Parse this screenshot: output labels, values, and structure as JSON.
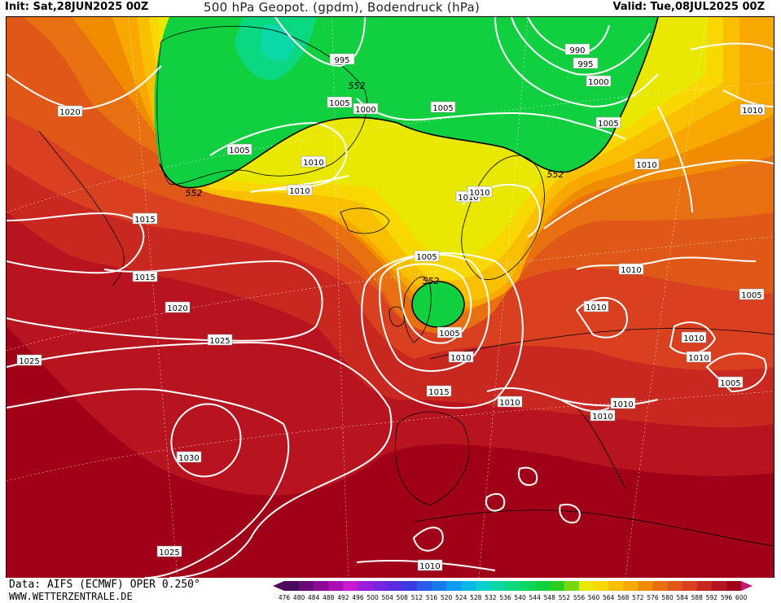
{
  "header": {
    "init": "Init: Sat,28JUN2025 00Z",
    "title": "500 hPa Geopot. (gpdm), Bodendruck (hPa)",
    "valid": "Valid: Tue,08JUL2025 00Z"
  },
  "footer": {
    "source": "Data: AIFS (ECMWF) OPER 0.250°",
    "website": "WWW.WETTERZENTRALE.DE"
  },
  "legend": {
    "ticks": [
      "476",
      "480",
      "484",
      "488",
      "492",
      "496",
      "500",
      "504",
      "508",
      "512",
      "516",
      "520",
      "524",
      "528",
      "532",
      "536",
      "540",
      "544",
      "548",
      "552",
      "556",
      "560",
      "564",
      "568",
      "572",
      "576",
      "580",
      "584",
      "588",
      "592",
      "596",
      "600"
    ],
    "colors": [
      "#4b0a5e",
      "#6a0a7a",
      "#8a0a96",
      "#aa10b4",
      "#c81ad0",
      "#9a1ed8",
      "#7a24dc",
      "#5a2ae0",
      "#3a3ae4",
      "#2a5ae8",
      "#1a7aec",
      "#109af0",
      "#0ab8e8",
      "#0ad0d0",
      "#0ad8a8",
      "#0ad880",
      "#0ad860",
      "#10d040",
      "#2ace20",
      "#7ad810",
      "#e8e800",
      "#f8d800",
      "#f8c000",
      "#f8a800",
      "#f08c00",
      "#e87010",
      "#e05818",
      "#d84020",
      "#c82820",
      "#b81420",
      "#a00018",
      "#c81870"
    ]
  },
  "map": {
    "isobar_labels": [
      "1020",
      "1015",
      "1015",
      "1020",
      "1025",
      "1025",
      "1030",
      "1025",
      "995",
      "990",
      "995",
      "1000",
      "1005",
      "1000",
      "1005",
      "1005",
      "1005",
      "1010",
      "1010",
      "1010",
      "1010",
      "1010",
      "1010",
      "1005",
      "1005",
      "1010",
      "1010",
      "1010",
      "1010",
      "1015",
      "1010",
      "1010",
      "1010",
      "1005",
      "1010",
      "1005",
      "1010"
    ],
    "geopotential_labels": [
      "552",
      "552",
      "552",
      "552"
    ]
  }
}
